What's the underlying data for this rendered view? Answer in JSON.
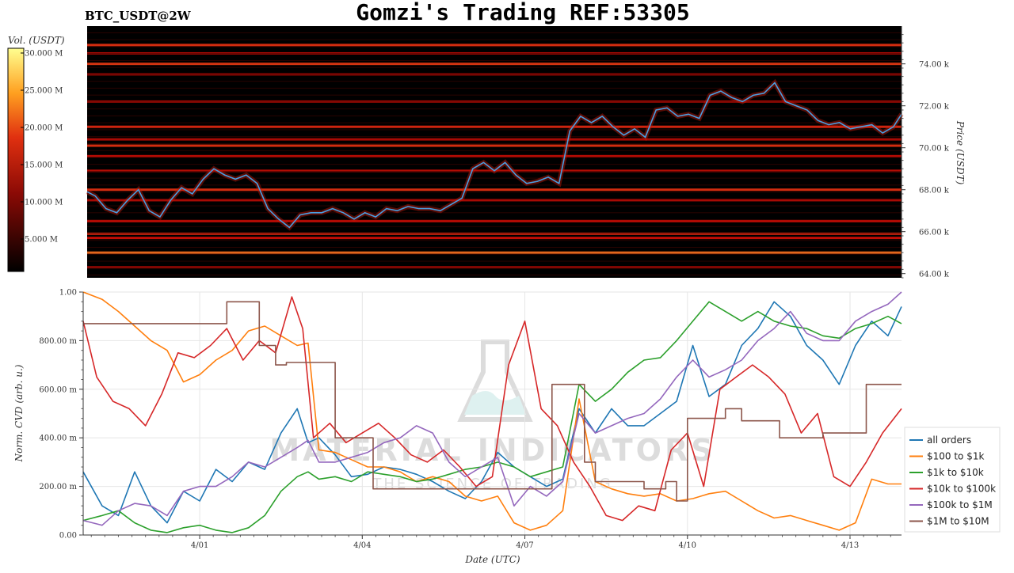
{
  "title": "Gomzi's Trading REF:53305",
  "symbol": "BTC_USDT@2W",
  "watermark": {
    "line1": "MATERIAL INDICATORS",
    "line2": "THE SCIENCE OF TRADING"
  },
  "colors": {
    "heat_low": "#000000",
    "heat_mid": "#c0150a",
    "heat_high": "#ffff80",
    "price_line": "#4a9fe0",
    "series": [
      "#1f77b4",
      "#ff7f0e",
      "#2ca02c",
      "#d62728",
      "#9467bd",
      "#8c564b"
    ]
  },
  "chart_data": [
    {
      "type": "heatmap",
      "name_label": "BTC_USDT@2W",
      "colorbar": {
        "label": "Vol. (USDT)",
        "range": [
          0,
          30
        ],
        "ticks": [
          "5.000 M",
          "10.000 M",
          "15.000 M",
          "20.000 M",
          "25.000 M",
          "30.000 M"
        ],
        "tick_values": [
          5,
          10,
          15,
          20,
          25,
          30
        ]
      },
      "ylabel": "Price (USDT)",
      "ylim": [
        63.8,
        75.8
      ],
      "yticks": [
        "64.00 k",
        "66.00 k",
        "68.00 k",
        "70.00 k",
        "72.00 k",
        "74.00 k"
      ],
      "ytick_values": [
        64,
        66,
        68,
        70,
        72,
        74
      ],
      "xlim_days": [
        -1.15,
        13.95
      ],
      "bands": [
        {
          "price": 74.9,
          "intensity": 0.55
        },
        {
          "price": 74.5,
          "intensity": 0.35
        },
        {
          "price": 74.0,
          "intensity": 0.6
        },
        {
          "price": 73.5,
          "intensity": 0.3
        },
        {
          "price": 72.2,
          "intensity": 0.35
        },
        {
          "price": 71.0,
          "intensity": 0.5
        },
        {
          "price": 70.4,
          "intensity": 0.35
        },
        {
          "price": 70.1,
          "intensity": 0.55
        },
        {
          "price": 69.6,
          "intensity": 0.4
        },
        {
          "price": 68.9,
          "intensity": 0.45
        },
        {
          "price": 68.0,
          "intensity": 0.55
        },
        {
          "price": 67.5,
          "intensity": 0.35
        },
        {
          "price": 66.5,
          "intensity": 0.4
        },
        {
          "price": 65.9,
          "intensity": 0.5
        },
        {
          "price": 65.7,
          "intensity": 0.45
        },
        {
          "price": 65.0,
          "intensity": 0.9
        },
        {
          "price": 64.3,
          "intensity": 0.3
        }
      ],
      "price_series": {
        "x": [
          -1.15,
          -1.0,
          -0.8,
          -0.6,
          -0.4,
          -0.2,
          0,
          0.2,
          0.4,
          0.6,
          0.8,
          1.0,
          1.2,
          1.4,
          1.6,
          1.8,
          2.0,
          2.2,
          2.4,
          2.6,
          2.8,
          3.0,
          3.2,
          3.4,
          3.6,
          3.8,
          4.0,
          4.2,
          4.4,
          4.6,
          4.8,
          5.0,
          5.2,
          5.4,
          5.6,
          5.8,
          6.0,
          6.2,
          6.4,
          6.6,
          6.8,
          7.0,
          7.2,
          7.4,
          7.6,
          7.8,
          8.0,
          8.2,
          8.4,
          8.6,
          8.8,
          9.0,
          9.2,
          9.4,
          9.6,
          9.8,
          10.0,
          10.2,
          10.4,
          10.6,
          10.8,
          11.0,
          11.2,
          11.4,
          11.6,
          11.8,
          12.0,
          12.2,
          12.4,
          12.6,
          12.8,
          13.0,
          13.2,
          13.4,
          13.6,
          13.8,
          13.95
        ],
        "y": [
          67.9,
          67.7,
          67.1,
          66.9,
          67.5,
          68.0,
          67.0,
          66.7,
          67.5,
          68.1,
          67.8,
          68.5,
          69.0,
          68.7,
          68.5,
          68.7,
          68.3,
          67.1,
          66.6,
          66.2,
          66.8,
          66.9,
          66.9,
          67.1,
          66.9,
          66.6,
          66.9,
          66.7,
          67.1,
          67.0,
          67.2,
          67.1,
          67.1,
          67.0,
          67.3,
          67.6,
          69.0,
          69.3,
          68.9,
          69.3,
          68.7,
          68.3,
          68.4,
          68.6,
          68.3,
          70.8,
          71.5,
          71.2,
          71.5,
          71.0,
          70.6,
          70.9,
          70.5,
          71.8,
          71.9,
          71.5,
          71.6,
          71.4,
          72.5,
          72.7,
          72.4,
          72.2,
          72.5,
          72.6,
          73.1,
          72.2,
          72.0,
          71.8,
          71.3,
          71.1,
          71.2,
          70.9,
          71.0,
          71.1,
          70.7,
          71.0,
          71.6
        ]
      }
    },
    {
      "type": "line",
      "ylabel": "Norm. CVD (arb. u.)",
      "xlabel": "Date (UTC)",
      "ylim": [
        0,
        1
      ],
      "yticks": [
        "0.00",
        "200.00 m",
        "400.00 m",
        "600.00 m",
        "800.00 m",
        "1.00"
      ],
      "ytick_values": [
        0,
        0.2,
        0.4,
        0.6,
        0.8,
        1.0
      ],
      "xlim_days": [
        -1.15,
        13.95
      ],
      "xticks": [
        "4/01",
        "4/04",
        "4/07",
        "4/10",
        "4/13"
      ],
      "xtick_values": [
        1,
        4,
        7,
        10,
        13
      ],
      "legend_position": "lower-right",
      "series": [
        {
          "name": "all orders",
          "x": [
            -1.15,
            -0.8,
            -0.5,
            -0.2,
            0.1,
            0.4,
            0.7,
            1.0,
            1.3,
            1.6,
            1.9,
            2.2,
            2.5,
            2.8,
            3.0,
            3.2,
            3.5,
            3.8,
            4.1,
            4.4,
            4.7,
            5.0,
            5.3,
            5.6,
            5.9,
            6.2,
            6.5,
            6.8,
            7.1,
            7.4,
            7.7,
            8.0,
            8.3,
            8.6,
            8.9,
            9.2,
            9.5,
            9.8,
            10.1,
            10.4,
            10.7,
            11.0,
            11.3,
            11.6,
            11.9,
            12.2,
            12.5,
            12.8,
            13.1,
            13.4,
            13.7,
            13.95
          ],
          "y": [
            0.26,
            0.12,
            0.08,
            0.26,
            0.12,
            0.05,
            0.18,
            0.14,
            0.27,
            0.22,
            0.3,
            0.27,
            0.42,
            0.52,
            0.38,
            0.4,
            0.33,
            0.24,
            0.25,
            0.28,
            0.27,
            0.25,
            0.22,
            0.18,
            0.15,
            0.22,
            0.34,
            0.28,
            0.24,
            0.2,
            0.23,
            0.52,
            0.42,
            0.52,
            0.45,
            0.45,
            0.5,
            0.55,
            0.78,
            0.57,
            0.62,
            0.78,
            0.85,
            0.96,
            0.9,
            0.78,
            0.72,
            0.62,
            0.78,
            0.88,
            0.82,
            0.94
          ]
        },
        {
          "name": "$100 to $1k",
          "x": [
            -1.15,
            -0.8,
            -0.5,
            -0.2,
            0.1,
            0.4,
            0.7,
            1.0,
            1.3,
            1.6,
            1.9,
            2.2,
            2.5,
            2.8,
            3.0,
            3.2,
            3.5,
            3.8,
            4.1,
            4.4,
            4.7,
            5.0,
            5.3,
            5.6,
            5.9,
            6.2,
            6.5,
            6.8,
            7.1,
            7.4,
            7.7,
            8.0,
            8.3,
            8.6,
            8.9,
            9.2,
            9.5,
            9.8,
            10.1,
            10.4,
            10.7,
            11.0,
            11.3,
            11.6,
            11.9,
            12.2,
            12.5,
            12.8,
            13.1,
            13.4,
            13.7,
            13.95
          ],
          "y": [
            1.0,
            0.97,
            0.92,
            0.86,
            0.8,
            0.76,
            0.63,
            0.66,
            0.72,
            0.76,
            0.84,
            0.86,
            0.82,
            0.78,
            0.79,
            0.35,
            0.34,
            0.31,
            0.28,
            0.28,
            0.26,
            0.22,
            0.24,
            0.22,
            0.16,
            0.14,
            0.16,
            0.05,
            0.02,
            0.04,
            0.1,
            0.56,
            0.22,
            0.19,
            0.17,
            0.16,
            0.17,
            0.14,
            0.15,
            0.17,
            0.18,
            0.14,
            0.1,
            0.07,
            0.08,
            0.06,
            0.04,
            0.02,
            0.05,
            0.23,
            0.21,
            0.21
          ]
        },
        {
          "name": "$1k to $10k",
          "x": [
            -1.15,
            -0.8,
            -0.5,
            -0.2,
            0.1,
            0.4,
            0.7,
            1.0,
            1.3,
            1.6,
            1.9,
            2.2,
            2.5,
            2.8,
            3.0,
            3.2,
            3.5,
            3.8,
            4.1,
            4.4,
            4.7,
            5.0,
            5.3,
            5.6,
            5.9,
            6.2,
            6.5,
            6.8,
            7.1,
            7.4,
            7.7,
            8.0,
            8.3,
            8.6,
            8.9,
            9.2,
            9.5,
            9.8,
            10.1,
            10.4,
            10.7,
            11.0,
            11.3,
            11.6,
            11.9,
            12.2,
            12.5,
            12.8,
            13.1,
            13.4,
            13.7,
            13.95
          ],
          "y": [
            0.06,
            0.08,
            0.1,
            0.05,
            0.02,
            0.01,
            0.03,
            0.04,
            0.02,
            0.01,
            0.03,
            0.08,
            0.18,
            0.24,
            0.26,
            0.23,
            0.24,
            0.22,
            0.26,
            0.25,
            0.24,
            0.22,
            0.23,
            0.25,
            0.27,
            0.28,
            0.3,
            0.28,
            0.24,
            0.26,
            0.28,
            0.62,
            0.55,
            0.6,
            0.67,
            0.72,
            0.73,
            0.8,
            0.88,
            0.96,
            0.92,
            0.88,
            0.92,
            0.88,
            0.86,
            0.85,
            0.82,
            0.81,
            0.85,
            0.87,
            0.9,
            0.87
          ]
        },
        {
          "name": "$10k to $100k",
          "x": [
            -1.15,
            -0.9,
            -0.6,
            -0.3,
            0,
            0.3,
            0.6,
            0.9,
            1.2,
            1.5,
            1.8,
            2.1,
            2.4,
            2.7,
            2.9,
            3.1,
            3.4,
            3.7,
            4.0,
            4.3,
            4.6,
            4.9,
            5.2,
            5.5,
            5.8,
            6.1,
            6.4,
            6.7,
            7.0,
            7.3,
            7.6,
            7.9,
            8.2,
            8.5,
            8.8,
            9.1,
            9.4,
            9.7,
            10.0,
            10.3,
            10.6,
            10.9,
            11.2,
            11.5,
            11.8,
            12.1,
            12.4,
            12.7,
            13.0,
            13.3,
            13.6,
            13.95
          ],
          "y": [
            0.88,
            0.65,
            0.55,
            0.52,
            0.45,
            0.58,
            0.75,
            0.73,
            0.78,
            0.85,
            0.72,
            0.8,
            0.75,
            0.98,
            0.85,
            0.4,
            0.46,
            0.38,
            0.42,
            0.46,
            0.4,
            0.33,
            0.3,
            0.35,
            0.28,
            0.2,
            0.24,
            0.7,
            0.88,
            0.52,
            0.45,
            0.3,
            0.2,
            0.08,
            0.06,
            0.12,
            0.1,
            0.35,
            0.42,
            0.2,
            0.6,
            0.65,
            0.7,
            0.65,
            0.58,
            0.42,
            0.5,
            0.24,
            0.2,
            0.3,
            0.42,
            0.52
          ]
        },
        {
          "name": "$100k to $1M",
          "x": [
            -1.15,
            -0.8,
            -0.5,
            -0.2,
            0.1,
            0.4,
            0.7,
            1.0,
            1.3,
            1.6,
            1.9,
            2.2,
            2.5,
            2.8,
            3.0,
            3.2,
            3.5,
            3.8,
            4.1,
            4.4,
            4.7,
            5.0,
            5.3,
            5.6,
            5.9,
            6.2,
            6.5,
            6.8,
            7.1,
            7.4,
            7.7,
            8.0,
            8.3,
            8.6,
            8.9,
            9.2,
            9.5,
            9.8,
            10.1,
            10.4,
            10.7,
            11.0,
            11.3,
            11.6,
            11.9,
            12.2,
            12.5,
            12.8,
            13.1,
            13.4,
            13.7,
            13.95
          ],
          "y": [
            0.06,
            0.04,
            0.1,
            0.13,
            0.12,
            0.08,
            0.18,
            0.2,
            0.2,
            0.24,
            0.3,
            0.28,
            0.32,
            0.36,
            0.39,
            0.3,
            0.3,
            0.32,
            0.34,
            0.38,
            0.4,
            0.45,
            0.42,
            0.3,
            0.24,
            0.28,
            0.32,
            0.12,
            0.2,
            0.16,
            0.22,
            0.5,
            0.42,
            0.45,
            0.48,
            0.5,
            0.56,
            0.65,
            0.72,
            0.65,
            0.68,
            0.72,
            0.8,
            0.85,
            0.92,
            0.83,
            0.8,
            0.8,
            0.88,
            0.92,
            0.95,
            1.0
          ]
        },
        {
          "name": "$1M to $10M",
          "x": [
            -1.15,
            0.1,
            0.1,
            1.5,
            1.5,
            2.1,
            2.1,
            2.4,
            2.4,
            2.6,
            2.6,
            3.5,
            3.5,
            4.2,
            4.2,
            5.5,
            5.5,
            7.5,
            7.5,
            8.1,
            8.1,
            8.3,
            8.3,
            9.2,
            9.2,
            9.6,
            9.6,
            9.8,
            9.8,
            10.0,
            10.0,
            10.7,
            10.7,
            11.0,
            11.0,
            11.3,
            11.3,
            11.7,
            11.7,
            12.5,
            12.5,
            13.3,
            13.3,
            13.95
          ],
          "y": [
            0.87,
            0.87,
            0.87,
            0.87,
            0.96,
            0.96,
            0.78,
            0.78,
            0.7,
            0.7,
            0.71,
            0.71,
            0.4,
            0.4,
            0.19,
            0.19,
            0.19,
            0.19,
            0.62,
            0.62,
            0.3,
            0.3,
            0.22,
            0.22,
            0.19,
            0.19,
            0.22,
            0.22,
            0.14,
            0.14,
            0.48,
            0.48,
            0.52,
            0.52,
            0.47,
            0.47,
            0.47,
            0.47,
            0.4,
            0.4,
            0.42,
            0.42,
            0.62,
            0.62
          ]
        }
      ]
    }
  ]
}
